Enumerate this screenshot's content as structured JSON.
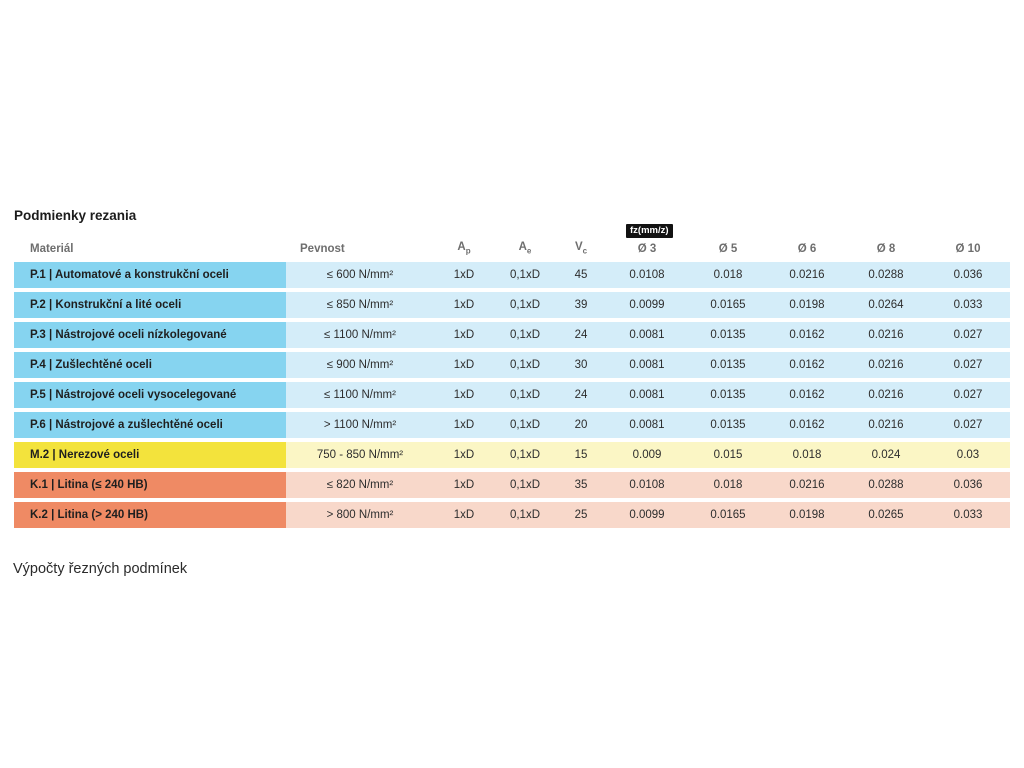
{
  "page": {
    "title": "Podmienky rezania",
    "footer_text": "Výpočty řezných podmínek"
  },
  "table": {
    "fz_badge": "fz(mm/z)",
    "headers": {
      "material": "Materiál",
      "pevnost": "Pevnost",
      "ap": {
        "base": "A",
        "sub": "p"
      },
      "ae": {
        "base": "A",
        "sub": "e"
      },
      "vc": {
        "base": "V",
        "sub": "c"
      },
      "d3": "Ø 3",
      "d5": "Ø 5",
      "d6": "Ø 6",
      "d8": "Ø 8",
      "d10": "Ø 10"
    },
    "rows": [
      {
        "group": "steel",
        "material": "P.1 | Automatové a konstrukční oceli",
        "pevnost": "≤ 600 N/mm²",
        "ap": "1xD",
        "ae": "0,1xD",
        "vc": "45",
        "d3": "0.0108",
        "d5": "0.018",
        "d6": "0.0216",
        "d8": "0.0288",
        "d10": "0.036"
      },
      {
        "group": "steel",
        "material": "P.2 | Konstrukční a lité oceli",
        "pevnost": "≤ 850 N/mm²",
        "ap": "1xD",
        "ae": "0,1xD",
        "vc": "39",
        "d3": "0.0099",
        "d5": "0.0165",
        "d6": "0.0198",
        "d8": "0.0264",
        "d10": "0.033"
      },
      {
        "group": "steel",
        "material": "P.3 | Nástrojové oceli nízkolegované",
        "pevnost": "≤ 1100 N/mm²",
        "ap": "1xD",
        "ae": "0,1xD",
        "vc": "24",
        "d3": "0.0081",
        "d5": "0.0135",
        "d6": "0.0162",
        "d8": "0.0216",
        "d10": "0.027"
      },
      {
        "group": "steel",
        "material": "P.4 | Zušlechtěné oceli",
        "pevnost": "≤ 900 N/mm²",
        "ap": "1xD",
        "ae": "0,1xD",
        "vc": "30",
        "d3": "0.0081",
        "d5": "0.0135",
        "d6": "0.0162",
        "d8": "0.0216",
        "d10": "0.027"
      },
      {
        "group": "steel",
        "material": "P.5 | Nástrojové oceli vysocelegované",
        "pevnost": "≤ 1100 N/mm²",
        "ap": "1xD",
        "ae": "0,1xD",
        "vc": "24",
        "d3": "0.0081",
        "d5": "0.0135",
        "d6": "0.0162",
        "d8": "0.0216",
        "d10": "0.027"
      },
      {
        "group": "steel",
        "material": "P.6 | Nástrojové a zušlechtěné oceli",
        "pevnost": "> 1100 N/mm²",
        "ap": "1xD",
        "ae": "0,1xD",
        "vc": "20",
        "d3": "0.0081",
        "d5": "0.0135",
        "d6": "0.0162",
        "d8": "0.0216",
        "d10": "0.027"
      },
      {
        "group": "stainless",
        "material": "M.2 | Nerezové oceli",
        "pevnost": "750 - 850 N/mm²",
        "ap": "1xD",
        "ae": "0,1xD",
        "vc": "15",
        "d3": "0.009",
        "d5": "0.015",
        "d6": "0.018",
        "d8": "0.024",
        "d10": "0.03"
      },
      {
        "group": "cast_iron",
        "material": "K.1 | Litina (≤ 240 HB)",
        "pevnost": "≤ 820 N/mm²",
        "ap": "1xD",
        "ae": "0,1xD",
        "vc": "35",
        "d3": "0.0108",
        "d5": "0.018",
        "d6": "0.0216",
        "d8": "0.0288",
        "d10": "0.036"
      },
      {
        "group": "cast_iron",
        "material": "K.2 | Litina (> 240 HB)",
        "pevnost": "> 800 N/mm²",
        "ap": "1xD",
        "ae": "0,1xD",
        "vc": "25",
        "d3": "0.0099",
        "d5": "0.0165",
        "d6": "0.0198",
        "d8": "0.0265",
        "d10": "0.033"
      }
    ]
  },
  "colors": {
    "steel_label": "#86d4f0",
    "steel_cell": "#d4edf9",
    "stainless_label": "#f3e33c",
    "stainless_cell": "#fbf6c5",
    "cast_iron_label": "#ef8a64",
    "cast_iron_cell": "#f8d8ca",
    "badge_bg": "#121212",
    "badge_text": "#ffffff"
  }
}
